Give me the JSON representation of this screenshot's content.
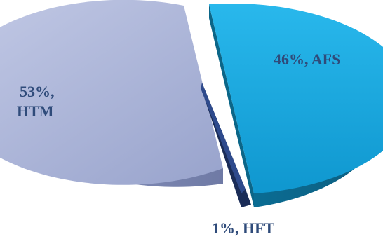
{
  "chart_data": {
    "type": "pie",
    "title": "",
    "slices": [
      {
        "name": "AFS",
        "value": 46,
        "label_line1": "46%, AFS",
        "label_line2": "",
        "color": "#1AA7DE",
        "side_color": "#0C6A8E"
      },
      {
        "name": "HFT",
        "value": 1,
        "label_line1": "1%, HFT",
        "label_line2": "",
        "color": "#2E4A8C",
        "side_color": "#1A2C57"
      },
      {
        "name": "HTM",
        "value": 53,
        "label_line1": "53%,",
        "label_line2": "HTM",
        "color": "#A9B3D6",
        "side_color": "#7E89B3"
      }
    ],
    "label_color": "#2F4B7A",
    "style": "3d-exploded"
  }
}
